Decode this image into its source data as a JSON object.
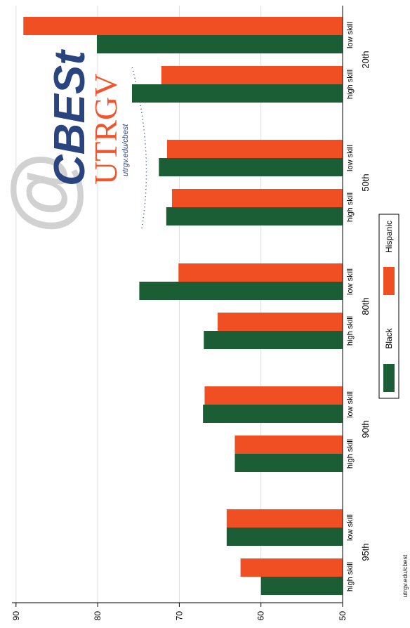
{
  "chart_data": {
    "type": "bar",
    "orientation": "rotated",
    "groups": [
      {
        "label": "95th",
        "categories": [
          "high skill",
          "low skill"
        ]
      },
      {
        "label": "90th",
        "categories": [
          "high skill",
          "low skill"
        ]
      },
      {
        "label": "80th",
        "categories": [
          "high skill",
          "low skill"
        ]
      },
      {
        "label": "50th",
        "categories": [
          "high skill",
          "low skill"
        ]
      },
      {
        "label": "20th",
        "categories": [
          "high skill",
          "low skill"
        ]
      }
    ],
    "series": [
      {
        "name": "Black",
        "color": "#1b5e35",
        "values": [
          [
            60.0,
            64.2
          ],
          [
            63.2,
            67.1
          ],
          [
            67.0,
            74.9
          ],
          [
            71.6,
            72.5
          ],
          [
            75.8,
            80.1
          ]
        ]
      },
      {
        "name": "Hispanic",
        "color": "#f04e23",
        "values": [
          [
            62.5,
            64.2
          ],
          [
            63.2,
            66.9
          ],
          [
            65.3,
            70.1
          ],
          [
            70.9,
            71.5
          ],
          [
            72.2,
            89.1
          ]
        ]
      }
    ],
    "axis": {
      "ticks": [
        "50",
        "60",
        "70",
        "80",
        "90"
      ],
      "range": [
        50,
        90.5
      ]
    },
    "legend": {
      "position": "right",
      "entries": [
        "Black",
        "Hispanic"
      ]
    },
    "grid": true
  },
  "source_note": "utrgv.edu/cbest",
  "logo": {
    "brand": "CBESt",
    "org": "UTRGV",
    "url": "utrgv.edu/cbest"
  }
}
